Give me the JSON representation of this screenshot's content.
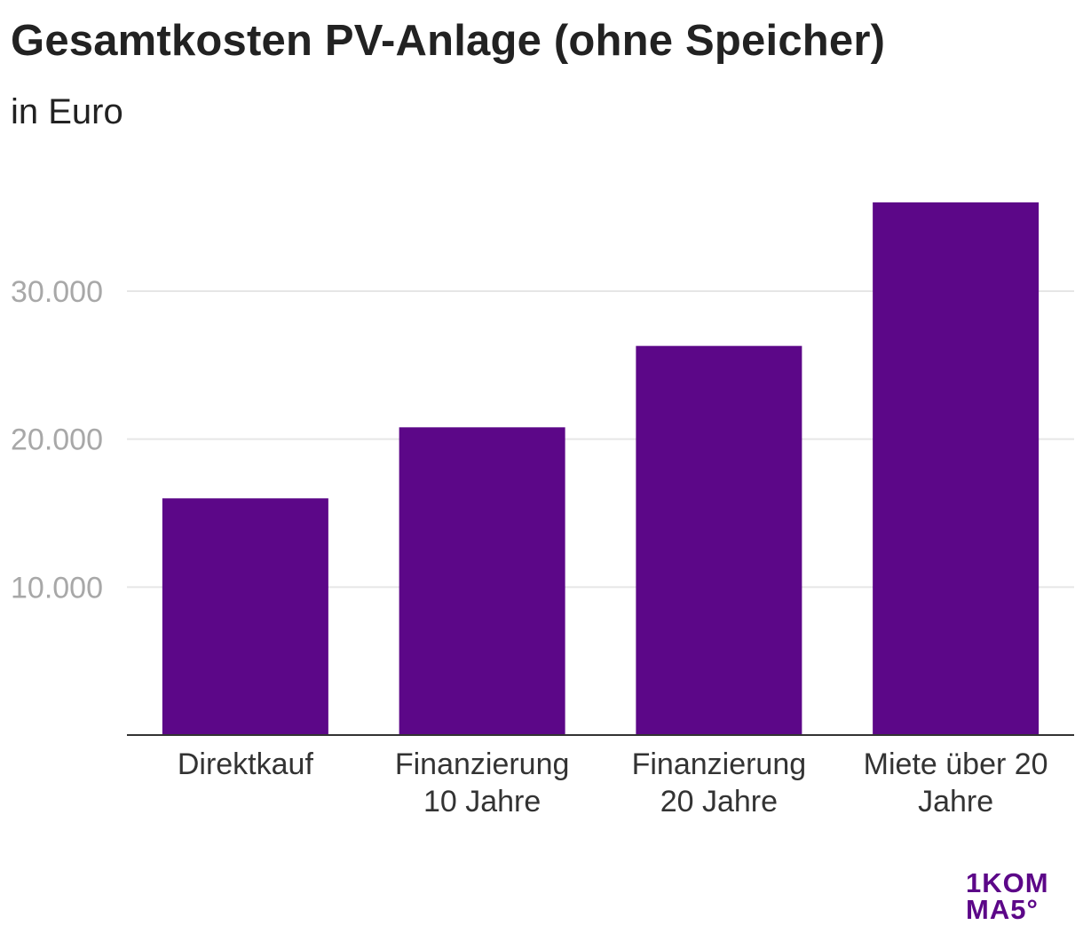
{
  "chart_data": {
    "type": "bar",
    "title": "Gesamtkosten PV-Anlage (ohne Speicher)",
    "subtitle": "in Euro",
    "categories": [
      "Direktkauf",
      "Finanzierung 10 Jahre",
      "Finanzierung 20 Jahre",
      "Miete über 20 Jahre"
    ],
    "category_lines": [
      [
        "Direktkauf"
      ],
      [
        "Finanzierung",
        "10 Jahre"
      ],
      [
        "Finanzierung",
        "20 Jahre"
      ],
      [
        "Miete über 20",
        "Jahre"
      ]
    ],
    "values": [
      16000,
      20800,
      26300,
      36000
    ],
    "ylim": [
      0,
      36000
    ],
    "yticks": [
      10000,
      20000,
      30000
    ],
    "ytick_labels": [
      "10.000",
      "20.000",
      "30.000"
    ],
    "grid": true,
    "colors": {
      "bar": "#5c0788",
      "grid": "#e6e6e6",
      "axis": "#333333",
      "tick_label": "#a8a8a8",
      "category_label": "#333333"
    }
  },
  "logo": {
    "line1": "1KOM",
    "line2": "MA5°",
    "color": "#5c0788"
  }
}
